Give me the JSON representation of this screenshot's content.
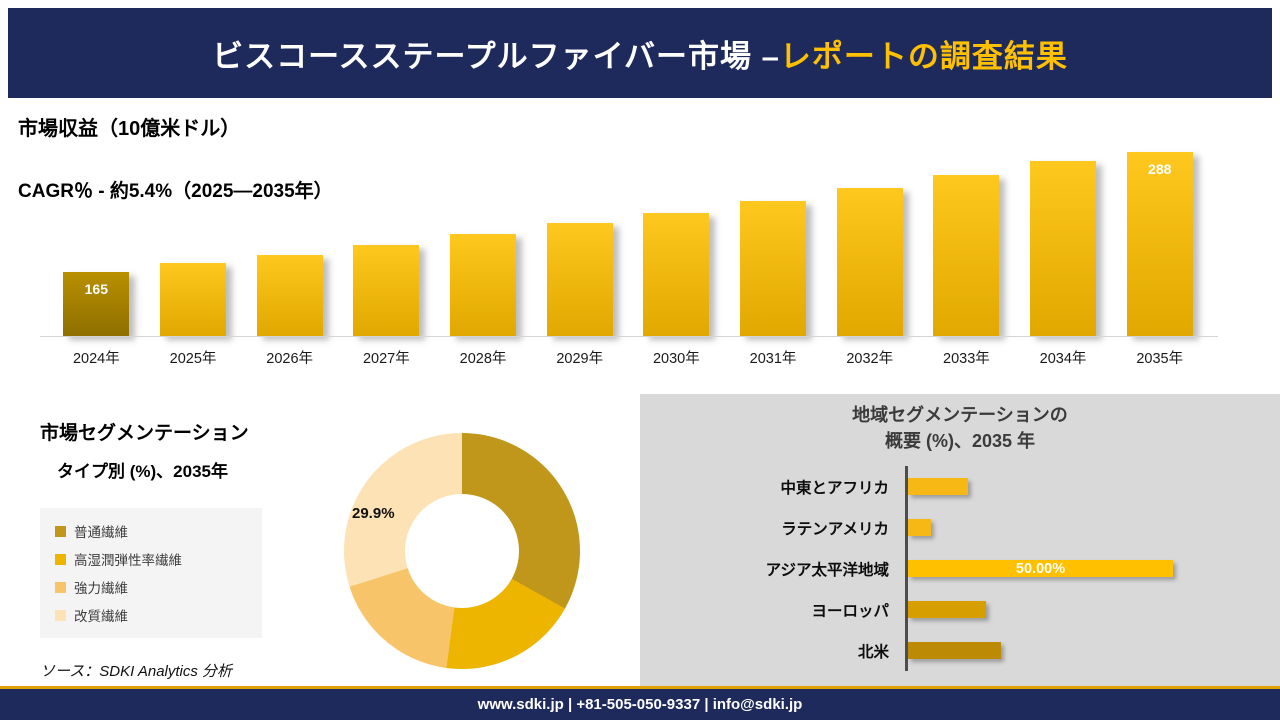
{
  "colors": {
    "navy": "#1F2A5C",
    "accent_yellow": "#FFC000",
    "panel_gray": "#D9D9D9"
  },
  "header": {
    "title_white": "ビスコースステープルファイバー市場 –",
    "title_accent": "レポートの調査結果"
  },
  "revenue": {
    "title": "市場収益（10億米ドル）",
    "subtitle": "CAGR％ - 約5.4%（2025―2035年）"
  },
  "segmentation": {
    "title_line1": "市場セグメンテーション",
    "title_line2": "タイプ別 (%)、2035年",
    "callout": "29.9%",
    "source": "ソース：SDKI Analytics 分析"
  },
  "regional": {
    "title_line1": "地域セグメンテーションの",
    "title_line2": "概要 (%)、2035 年"
  },
  "footer": {
    "text": "www.sdki.jp | +81-505-050-9337 | info@sdki.jp"
  },
  "chart_data": [
    {
      "type": "bar",
      "title": "市場収益（10億米ドル）",
      "subtitle": "CAGR％ - 約5.4%（2025―2035年）",
      "categories": [
        "2024年",
        "2025年",
        "2026年",
        "2027年",
        "2028年",
        "2029年",
        "2030年",
        "2031年",
        "2032年",
        "2033年",
        "2034年",
        "2035年"
      ],
      "values": [
        165,
        174,
        183,
        193,
        204,
        215,
        226,
        238,
        251,
        264,
        279,
        288
      ],
      "data_labels": [
        "165",
        null,
        null,
        null,
        null,
        null,
        null,
        null,
        null,
        null,
        null,
        "288"
      ],
      "ylabel": "10億米ドル",
      "ylim": [
        100,
        300
      ],
      "bar_color_first": [
        "#B89000",
        "#8F6F00"
      ],
      "bar_color": [
        "#FFC81E",
        "#E0A800"
      ]
    },
    {
      "type": "pie",
      "title": "市場セグメンテーション タイプ別 (%)、2035年",
      "slices": [
        {
          "label": "普通繊維",
          "value": 33.1,
          "color": "#C0971B"
        },
        {
          "label": "高湿潤弾性率繊維",
          "value": 19.0,
          "color": "#EDB500"
        },
        {
          "label": "強力繊維",
          "value": 18.0,
          "color": "#F7C469"
        },
        {
          "label": "改質繊維",
          "value": 29.9,
          "color": "#FCE2B5"
        }
      ],
      "shown_label": {
        "slice": "改質繊維",
        "text": "29.9%"
      }
    },
    {
      "type": "bar",
      "orientation": "horizontal",
      "title": "地域セグメンテーションの概要 (%)、2035 年",
      "xlim": [
        0,
        55
      ],
      "rows": [
        {
          "label": "中東とアフリカ",
          "value": 11.3,
          "color": "#F7B714",
          "display_label": null
        },
        {
          "label": "ラテンアメリカ",
          "value": 4.3,
          "color": "#F7B714",
          "display_label": null
        },
        {
          "label": "アジア太平洋地域",
          "value": 50.0,
          "color": "#FFC000",
          "display_label": "50.00%"
        },
        {
          "label": "ヨーロッパ",
          "value": 14.7,
          "color": "#D79E00",
          "display_label": null
        },
        {
          "label": "北米",
          "value": 17.5,
          "color": "#BD8A06",
          "display_label": null
        }
      ]
    }
  ]
}
